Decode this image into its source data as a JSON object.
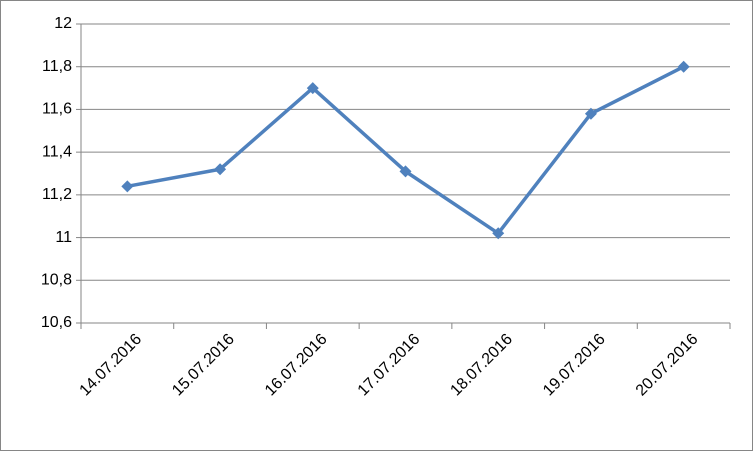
{
  "chart_data": {
    "type": "line",
    "categories": [
      "14.07.2016",
      "15.07.2016",
      "16.07.2016",
      "17.07.2016",
      "18.07.2016",
      "19.07.2016",
      "20.07.2016"
    ],
    "series": [
      {
        "color": "#4f81bd",
        "values": [
          11.24,
          11.32,
          11.7,
          11.31,
          11.02,
          11.58,
          11.8
        ]
      }
    ],
    "ylim": [
      10.6,
      12
    ],
    "yticks": [
      {
        "value": 10.6,
        "label": "10,6"
      },
      {
        "value": 10.8,
        "label": "10,8"
      },
      11,
      {
        "value": 11.2,
        "label": "11,2"
      },
      {
        "value": 11.4,
        "label": "11,4"
      },
      {
        "value": 11.6,
        "label": "11,6"
      },
      {
        "value": 11.8,
        "label": "11,8"
      },
      12
    ],
    "grid": true
  }
}
